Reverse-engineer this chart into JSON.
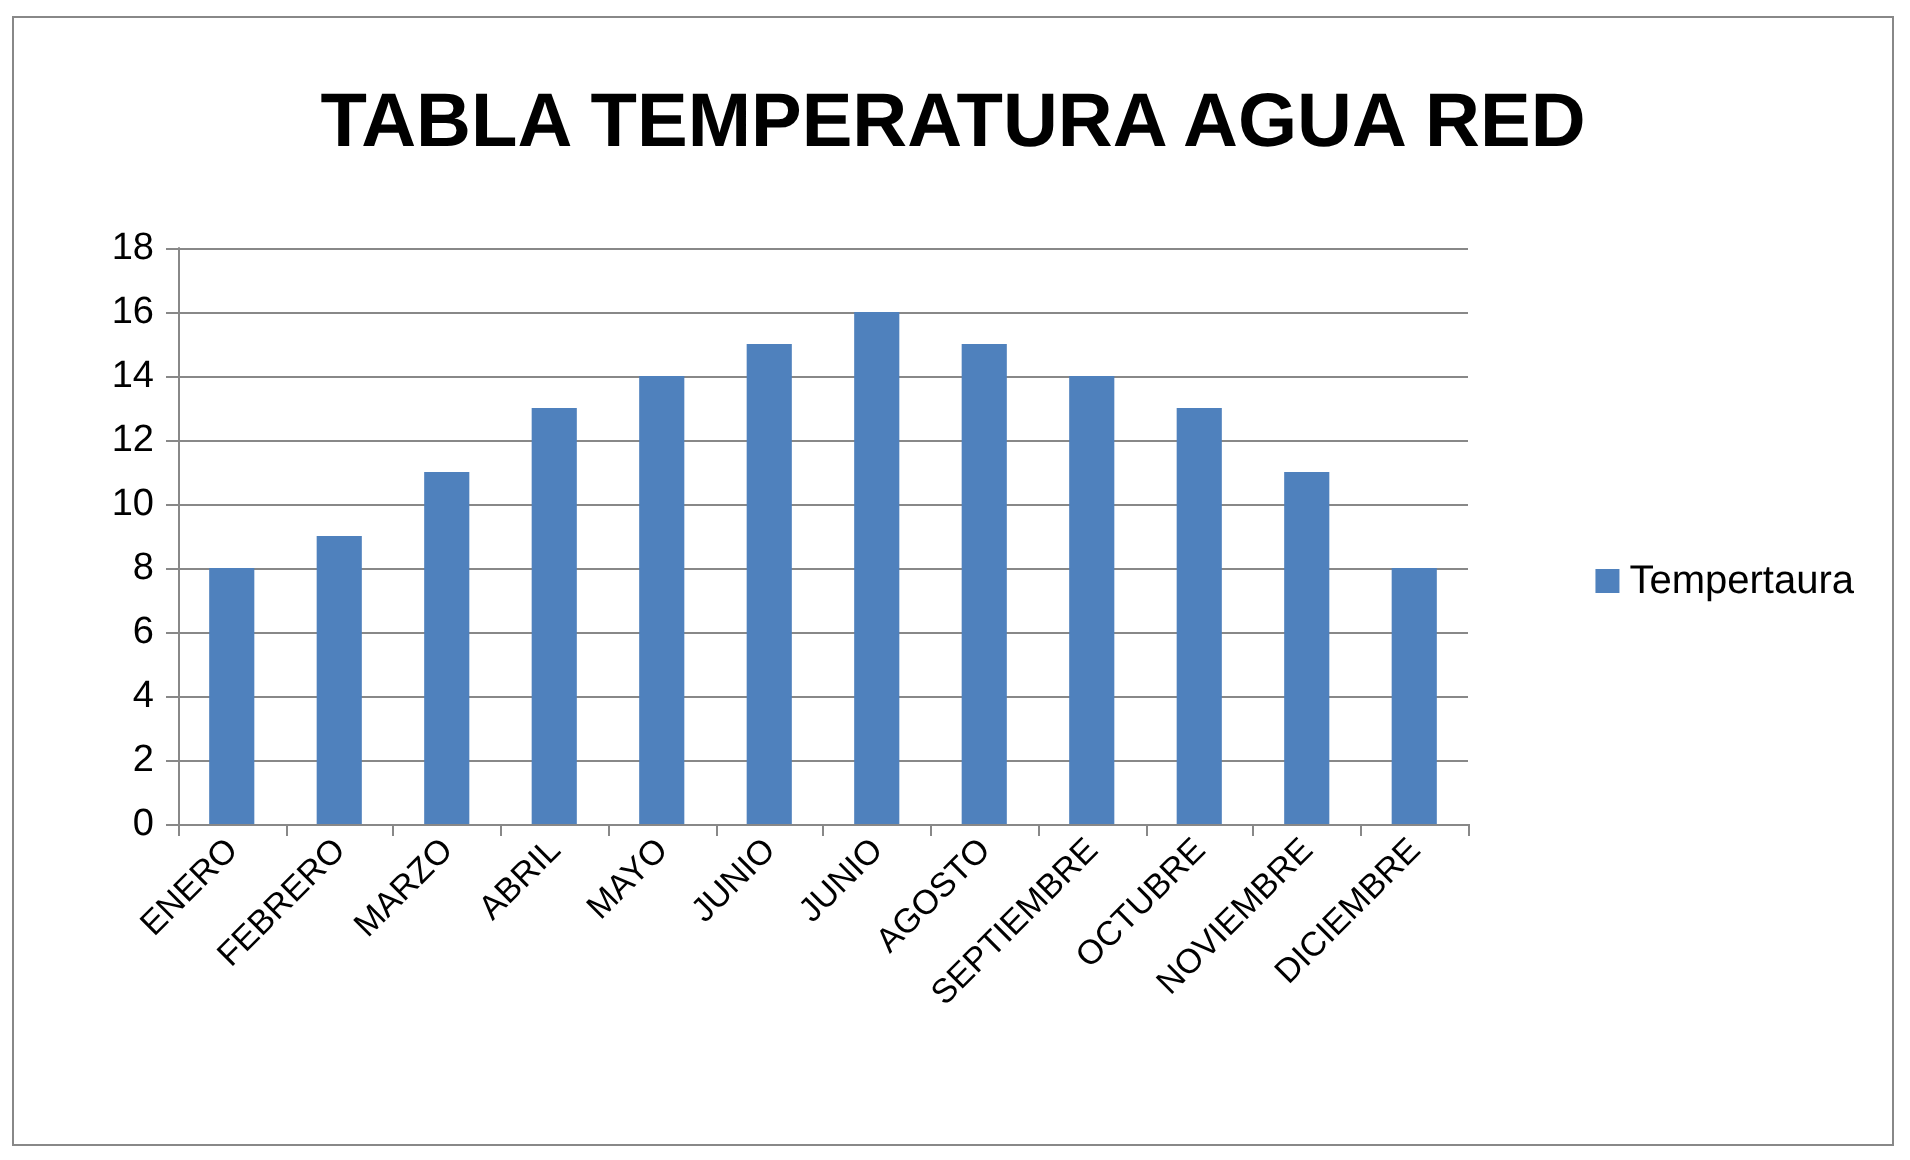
{
  "chart_data": {
    "type": "bar",
    "title": "TABLA TEMPERATURA AGUA RED",
    "categories": [
      "ENERO",
      "FEBRERO",
      "MARZO",
      "ABRIL",
      "MAYO",
      "JUNIO",
      "JUNIO",
      "AGOSTO",
      "SEPTIEMBRE",
      "OCTUBRE",
      "NOVIEMBRE",
      "DICIEMBRE"
    ],
    "series": [
      {
        "name": "Tempertaura",
        "color": "#4f81bd",
        "values": [
          8,
          9,
          11,
          13,
          14,
          15,
          16,
          15,
          14,
          13,
          11,
          8
        ]
      }
    ],
    "ylim": [
      0,
      18
    ],
    "yticks": [
      0,
      2,
      4,
      6,
      8,
      10,
      12,
      14,
      16,
      18
    ],
    "grid": "y",
    "legend": "right"
  }
}
